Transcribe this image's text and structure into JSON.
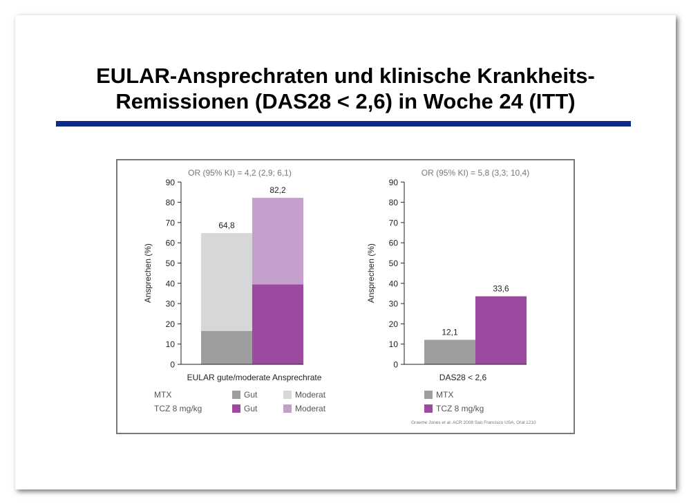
{
  "slide": {
    "title_line1": "EULAR-Ansprechraten und klinische Krankheits-",
    "title_line2": "Remissionen (DAS28 < 2,6) in Woche 24 (ITT)",
    "rule_color": "#0d2a8a",
    "citation": "Graeme Jones et al. ACR 2008 San Francisco USA, Oral 1210"
  },
  "chart_data": [
    {
      "type": "bar",
      "stacked": true,
      "annotation": "OR (95% KI) = 4,2 (2,9; 6,1)",
      "xlabel": "EULAR gute/moderate Ansprechrate",
      "ylabel": "Ansprechen (%)",
      "ylim": [
        0,
        90
      ],
      "yticks": [
        0,
        10,
        20,
        30,
        40,
        50,
        60,
        70,
        80,
        90
      ],
      "bars": [
        {
          "group": "MTX",
          "total_label": "64,8",
          "segments": [
            {
              "name": "Gut",
              "value": 16.5,
              "color": "#9e9ea1"
            },
            {
              "name": "Moderat",
              "value": 48.3,
              "color": "#d6d7d9"
            }
          ]
        },
        {
          "group": "TCZ 8 mg/kg",
          "total_label": "82,2",
          "segments": [
            {
              "name": "Gut",
              "value": 39.5,
              "color": "#9b4a9f"
            },
            {
              "name": "Moderat",
              "value": 42.7,
              "color": "#c49fcd"
            }
          ]
        }
      ],
      "legend": {
        "rows": [
          {
            "label": "MTX",
            "items": [
              {
                "label": "Gut",
                "color": "#9e9ea1"
              },
              {
                "label": "Moderat",
                "color": "#d6d7d9"
              }
            ]
          },
          {
            "label": "TCZ 8 mg/kg",
            "items": [
              {
                "label": "Gut",
                "color": "#9b4a9f"
              },
              {
                "label": "Moderat",
                "color": "#c49fcd"
              }
            ]
          }
        ]
      }
    },
    {
      "type": "bar",
      "annotation": "OR (95% KI) = 5,8 (3,3; 10,4)",
      "xlabel": "DAS28 < 2,6",
      "ylabel": "Ansprechen (%)",
      "ylim": [
        0,
        90
      ],
      "yticks": [
        0,
        10,
        20,
        30,
        40,
        50,
        60,
        70,
        80,
        90
      ],
      "bars": [
        {
          "group": "MTX",
          "value": 12.1,
          "label": "12,1",
          "color": "#9e9ea1"
        },
        {
          "group": "TCZ 8 mg/kg",
          "value": 33.6,
          "label": "33,6",
          "color": "#9b4a9f"
        }
      ],
      "legend": {
        "items": [
          {
            "label": "MTX",
            "color": "#9e9ea1"
          },
          {
            "label": "TCZ 8 mg/kg",
            "color": "#9b4a9f"
          }
        ]
      }
    }
  ]
}
